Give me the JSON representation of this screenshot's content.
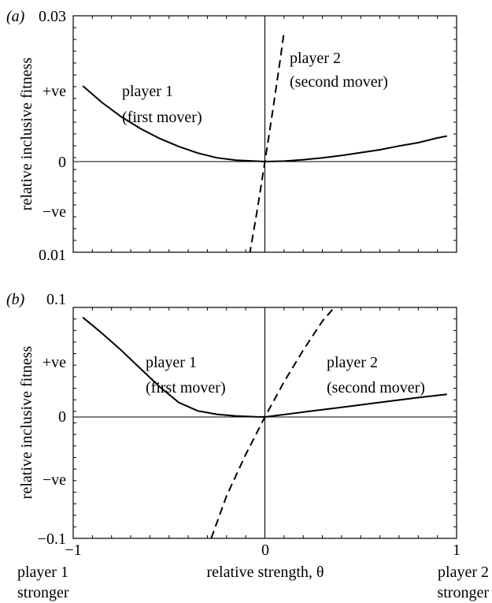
{
  "chart_data": [
    {
      "type": "line",
      "panel_label": "(a)",
      "ylabel": "relative inclusive fitness",
      "xlim": [
        -1,
        1
      ],
      "y_tick_labels": [
        "0.03",
        "+ve",
        "0",
        "−ve",
        "0.01"
      ],
      "series": [
        {
          "name": "player 1 (first mover)",
          "label_lines": [
            "player 1",
            "(first mover)"
          ],
          "style": "solid",
          "x": [
            -0.95,
            -0.85,
            -0.75,
            -0.65,
            -0.55,
            -0.45,
            -0.35,
            -0.25,
            -0.15,
            -0.05,
            0.0,
            0.1,
            0.2,
            0.3,
            0.4,
            0.5,
            0.6,
            0.7,
            0.8,
            0.9,
            0.95
          ],
          "y": [
            0.016,
            0.0125,
            0.0095,
            0.007,
            0.0049,
            0.0032,
            0.0018,
            0.0008,
            0.0003,
            0.0001,
            0.0,
            0.0001,
            0.0004,
            0.0008,
            0.0013,
            0.0019,
            0.0025,
            0.0033,
            0.004,
            0.005,
            0.0054
          ]
        },
        {
          "name": "player 2 (second mover)",
          "label_lines": [
            "player 2",
            "(second mover)"
          ],
          "style": "dashed",
          "x": [
            -0.08,
            -0.06,
            -0.04,
            -0.02,
            0.0,
            0.02,
            0.04,
            0.06,
            0.08,
            0.1
          ],
          "y": [
            -0.0197,
            -0.015,
            -0.0102,
            -0.0052,
            0.0,
            0.0052,
            0.0105,
            0.016,
            0.0216,
            0.0275
          ]
        }
      ]
    },
    {
      "type": "line",
      "panel_label": "(b)",
      "ylabel": "relative inclusive fitness",
      "xlabel": "relative strength, θ",
      "xlim": [
        -1,
        1
      ],
      "ylim": [
        -0.1,
        0.1
      ],
      "x_tick_labels": [
        "−1",
        "0",
        "1"
      ],
      "y_tick_labels": [
        "0.1",
        "+ve",
        "0",
        "−ve",
        "−0.1"
      ],
      "x_end_labels": {
        "left": [
          "player 1",
          "stronger"
        ],
        "right": [
          "player 2",
          "stronger"
        ]
      },
      "series": [
        {
          "name": "player 1 (first mover)",
          "label_lines": [
            "player 1",
            "(first mover)"
          ],
          "style": "solid",
          "x": [
            -0.95,
            -0.85,
            -0.75,
            -0.65,
            -0.55,
            -0.45,
            -0.35,
            -0.25,
            -0.15,
            -0.05,
            0.0,
            0.2,
            0.4,
            0.6,
            0.8,
            0.95
          ],
          "y": [
            0.082,
            0.069,
            0.055,
            0.04,
            0.025,
            0.012,
            0.005,
            0.0022,
            0.0008,
            0.0001,
            0.0,
            0.004,
            0.008,
            0.012,
            0.016,
            0.0187
          ]
        },
        {
          "name": "player 2 (second mover)",
          "label_lines": [
            "player 2",
            "(second mover)"
          ],
          "style": "dashed",
          "x": [
            -0.28,
            -0.2,
            -0.1,
            0.0,
            0.1,
            0.2,
            0.3,
            0.4,
            0.45
          ],
          "y": [
            -0.1,
            -0.065,
            -0.031,
            0.0,
            0.029,
            0.055,
            0.079,
            0.097,
            0.104
          ]
        }
      ]
    }
  ]
}
